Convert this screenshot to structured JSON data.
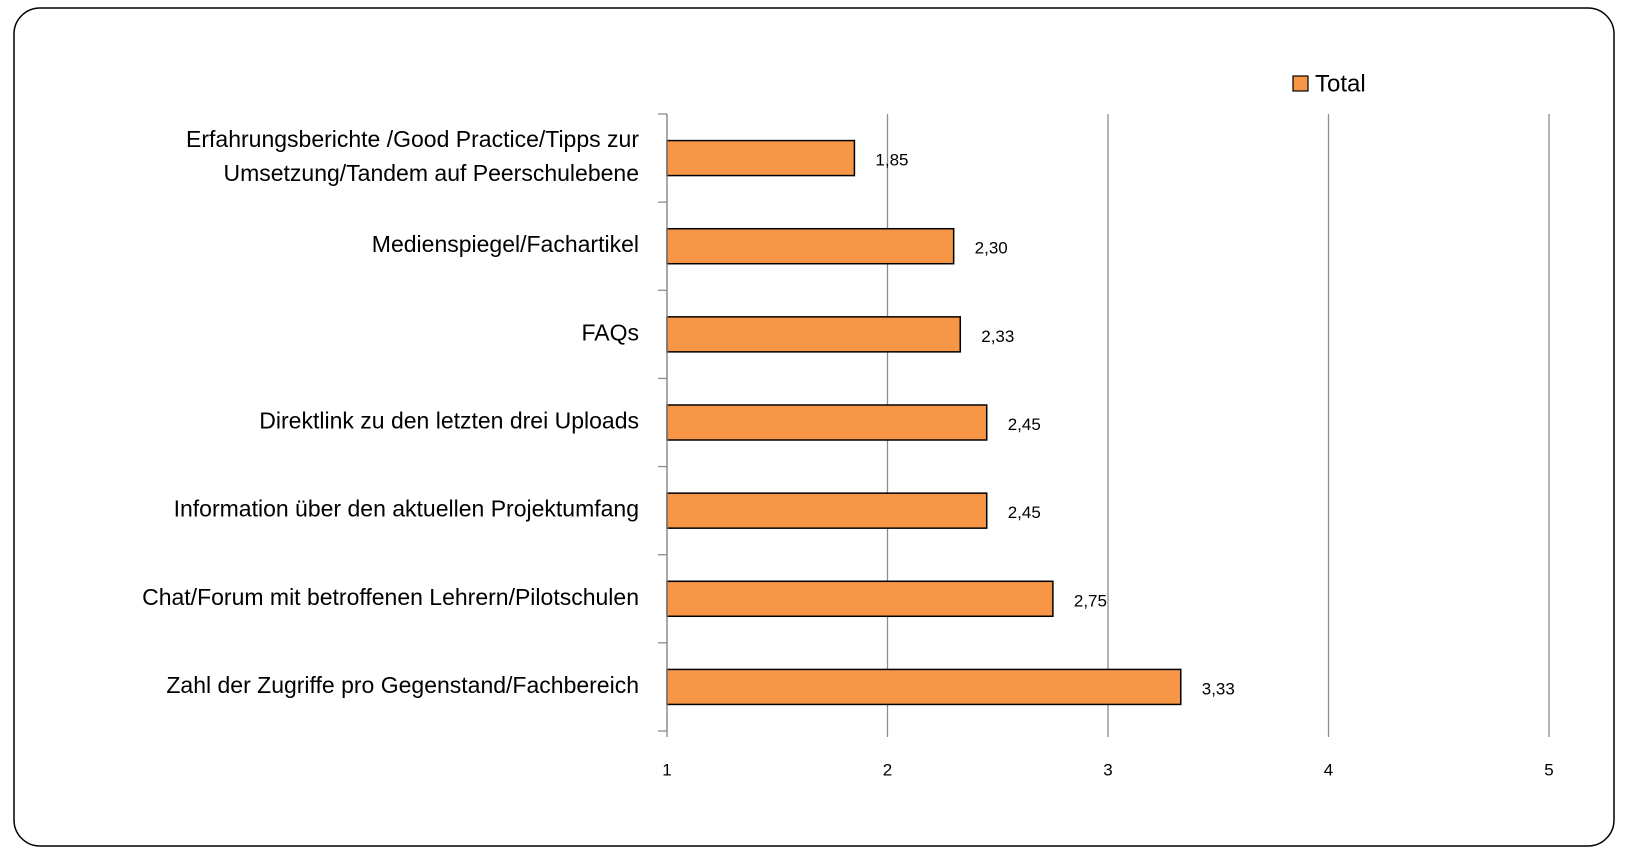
{
  "chart_data": {
    "type": "barh",
    "categories": [
      "Erfahrungsberichte /Good Practice/Tipps zur\nUmsetzung/Tandem auf Peerschulebene",
      "Medienspiegel/Fachartikel",
      "FAQs",
      "Direktlink zu den letzten drei Uploads",
      "Information über den aktuellen Projektumfang",
      "Chat/Forum mit betroffenen Lehrern/Pilotschulen",
      "Zahl der Zugriffe pro Gegenstand/Fachbereich"
    ],
    "series": [
      {
        "name": "Total",
        "color": "#f79646",
        "values": [
          1.85,
          2.3,
          2.33,
          2.45,
          2.45,
          2.75,
          3.33
        ],
        "value_labels": [
          "1,85",
          "2,30",
          "2,33",
          "2,45",
          "2,45",
          "2,75",
          "3,33"
        ]
      }
    ],
    "xlim": [
      1,
      5
    ],
    "xticks": [
      1,
      2,
      3,
      4,
      5
    ],
    "grid": true,
    "legend": "top-right"
  }
}
